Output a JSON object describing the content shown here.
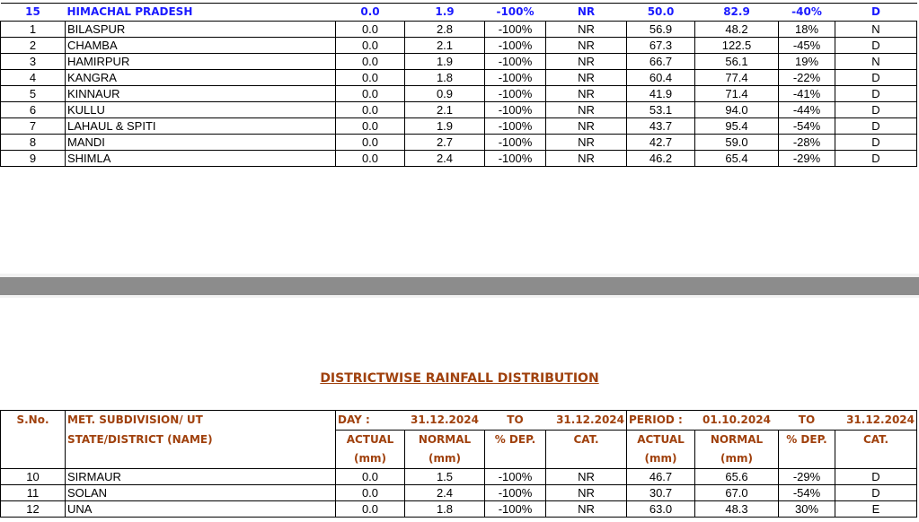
{
  "state_row": {
    "sno": "15",
    "name": "HIMACHAL PRADESH",
    "day_actual": "0.0",
    "day_normal": "1.9",
    "day_dep": "-100%",
    "day_cat": "NR",
    "period_actual": "50.0",
    "period_normal": "82.9",
    "period_dep": "-40%",
    "period_cat": "D"
  },
  "top_rows": [
    [
      "1",
      "BILASPUR",
      "0.0",
      "2.8",
      "-100%",
      "NR",
      "56.9",
      "48.2",
      "18%",
      "N"
    ],
    [
      "2",
      "CHAMBA",
      "0.0",
      "2.1",
      "-100%",
      "NR",
      "67.3",
      "122.5",
      "-45%",
      "D"
    ],
    [
      "3",
      "HAMIRPUR",
      "0.0",
      "1.9",
      "-100%",
      "NR",
      "66.7",
      "56.1",
      "19%",
      "N"
    ],
    [
      "4",
      "KANGRA",
      "0.0",
      "1.8",
      "-100%",
      "NR",
      "60.4",
      "77.4",
      "-22%",
      "D"
    ],
    [
      "5",
      "KINNAUR",
      "0.0",
      "0.9",
      "-100%",
      "NR",
      "41.9",
      "71.4",
      "-41%",
      "D"
    ],
    [
      "6",
      "KULLU",
      "0.0",
      "2.1",
      "-100%",
      "NR",
      "53.1",
      "94.0",
      "-44%",
      "D"
    ],
    [
      "7",
      "LAHAUL & SPITI",
      "0.0",
      "1.9",
      "-100%",
      "NR",
      "43.7",
      "95.4",
      "-54%",
      "D"
    ],
    [
      "8",
      "MANDI",
      "0.0",
      "2.7",
      "-100%",
      "NR",
      "42.7",
      "59.0",
      "-28%",
      "D"
    ],
    [
      "9",
      "SHIMLA",
      "0.0",
      "2.4",
      "-100%",
      "NR",
      "46.2",
      "65.4",
      "-29%",
      "D"
    ]
  ],
  "title": "DISTRICTWISE RAINFALL DISTRIBUTION",
  "header": {
    "sno": "S.No.",
    "name1": "MET.  SUBDIVISION/ UT",
    "name2": "STATE/DISTRICT (NAME)",
    "day": "DAY :",
    "day_from": "31.12.2024",
    "to": "TO",
    "day_to": "31.12.2024",
    "period": "PERIOD :",
    "period_from": "01.10.2024",
    "period_to": "31.12.2024",
    "actual": "ACTUAL",
    "normal": "NORMAL",
    "dep": "% DEP.",
    "cat": "CAT.",
    "mm": "(mm)"
  },
  "bottom_rows": [
    [
      "10",
      "SIRMAUR",
      "0.0",
      "1.5",
      "-100%",
      "NR",
      "46.7",
      "65.6",
      "-29%",
      "D"
    ],
    [
      "11",
      "SOLAN",
      "0.0",
      "2.4",
      "-100%",
      "NR",
      "30.7",
      "67.0",
      "-54%",
      "D"
    ],
    [
      "12",
      "UNA",
      "0.0",
      "1.8",
      "-100%",
      "NR",
      "63.0",
      "48.3",
      "30%",
      "E"
    ]
  ]
}
